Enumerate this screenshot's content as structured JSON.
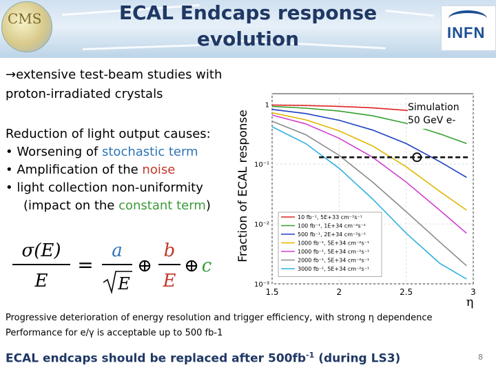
{
  "title": "ECAL Endcaps response evolution",
  "logos": {
    "left": "CMS",
    "right": "INFN"
  },
  "intro": {
    "arrow": "→",
    "line1": "extensive test-beam studies with",
    "line2": "proton-irradiated crystals"
  },
  "causes": {
    "heading": "Reduction of light output causes:",
    "bullets": [
      {
        "prefix": "Worsening of ",
        "highlight": "stochastic term",
        "suffix": "",
        "color": "#2e75b6"
      },
      {
        "prefix": "Amplification of the ",
        "highlight": "noise",
        "suffix": "",
        "color": "#c0392b"
      },
      {
        "prefix": "light collection non-uniformity",
        "highlight": "",
        "suffix": "",
        "color": ""
      }
    ],
    "continuation": {
      "prefix": "(impact on the ",
      "highlight": "constant term",
      "suffix": ")",
      "color": "#3a9a3a"
    }
  },
  "formula": {
    "lhs_num": "σ(E)",
    "lhs_den": "E",
    "eq": "=",
    "a": "a",
    "sqrtE": "E",
    "oplus": "⊕",
    "b": "b",
    "bden": "E",
    "c": "c"
  },
  "chart_data": {
    "type": "line",
    "ylabel": "Fraction of ECAL response",
    "xlabel": "η",
    "xlim": [
      1.5,
      3.0
    ],
    "ylim_log": [
      0.001,
      1.5
    ],
    "yscale": "log",
    "xticks": [
      "1.5",
      "2",
      "2.5",
      "3"
    ],
    "yticks": [
      "1",
      "10⁻¹",
      "10⁻²",
      "10⁻³"
    ],
    "annotation": "Simulation 50 GeV e-",
    "reference_line_y": 0.13,
    "reference_marker_x": 2.58,
    "series": [
      {
        "name": "10 fb⁻¹, 5E+33 cm⁻²s⁻¹",
        "color": "#e02020",
        "x": [
          1.5,
          1.75,
          2.0,
          2.25,
          2.5,
          2.75,
          2.95
        ],
        "y": [
          0.97,
          0.95,
          0.92,
          0.87,
          0.79,
          0.68,
          0.58
        ]
      },
      {
        "name": "100 fb⁻¹, 1E+34 cm⁻²s⁻¹",
        "color": "#33a02c",
        "x": [
          1.5,
          1.75,
          2.0,
          2.25,
          2.5,
          2.75,
          2.95
        ],
        "y": [
          0.92,
          0.86,
          0.77,
          0.64,
          0.48,
          0.32,
          0.22
        ]
      },
      {
        "name": "500 fb⁻¹, 2E+34 cm⁻²s⁻¹",
        "color": "#1f3fbf",
        "x": [
          1.5,
          1.75,
          2.0,
          2.25,
          2.5,
          2.75,
          2.95
        ],
        "y": [
          0.82,
          0.7,
          0.54,
          0.37,
          0.22,
          0.11,
          0.06
        ]
      },
      {
        "name": "1000 fb⁻¹, 5E+34 cm⁻²s⁻¹",
        "color": "#e0b800",
        "x": [
          1.5,
          1.75,
          2.0,
          2.25,
          2.5,
          2.75,
          2.95
        ],
        "y": [
          0.72,
          0.55,
          0.36,
          0.2,
          0.09,
          0.035,
          0.017
        ]
      },
      {
        "name": "1000 fb⁻¹, 5E+34 cm⁻²s⁻¹",
        "color": "#d040d0",
        "x": [
          1.5,
          1.75,
          2.0,
          2.25,
          2.5,
          2.75,
          2.95
        ],
        "y": [
          0.66,
          0.47,
          0.27,
          0.13,
          0.05,
          0.017,
          0.007
        ]
      },
      {
        "name": "2000 fb⁻¹, 5E+34 cm⁻²s⁻¹",
        "color": "#8a8a8a",
        "x": [
          1.5,
          1.75,
          2.0,
          2.25,
          2.5,
          2.75,
          2.95
        ],
        "y": [
          0.52,
          0.31,
          0.14,
          0.05,
          0.016,
          0.005,
          0.002
        ]
      },
      {
        "name": "3000 fb⁻¹, 5E+34 cm⁻²s⁻¹",
        "color": "#30b0e0",
        "x": [
          1.5,
          1.75,
          2.0,
          2.25,
          2.5,
          2.75,
          2.95
        ],
        "y": [
          0.42,
          0.22,
          0.085,
          0.026,
          0.007,
          0.0022,
          0.0012
        ]
      }
    ]
  },
  "footer": {
    "line1": "Progressive deterioration of energy resolution and trigger efficiency, with strong η dependence",
    "line2": "Performance for e/γ is acceptable up to 500 fb-1",
    "line3_main": "ECAL endcaps should be replaced after 500fb",
    "line3_sup": "-1",
    "line3_tail": " (during LS3)",
    "page": "8"
  }
}
